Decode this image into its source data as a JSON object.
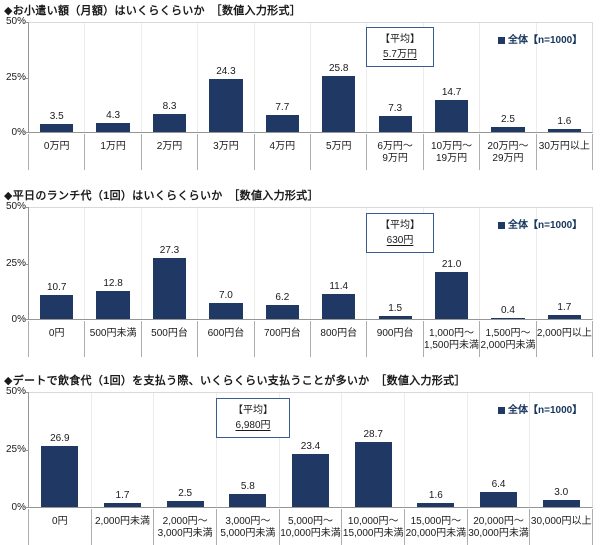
{
  "colors": {
    "bar": "#1f3864",
    "average_box_border": "#3a5a94",
    "legend_text": "#17365d",
    "axis": "#969696",
    "gridline": "#ececec"
  },
  "chart_data": [
    {
      "type": "bar",
      "title": "◆お小遣い額（月額）はいくらくらいか　［数値入力形式］",
      "categories": [
        "0万円",
        "1万円",
        "2万円",
        "3万円",
        "4万円",
        "5万円",
        "6万円～\n9万円",
        "10万円～\n19万円",
        "20万円～\n29万円",
        "30万円以上"
      ],
      "values": [
        3.5,
        4.3,
        8.3,
        24.3,
        7.7,
        25.8,
        7.3,
        14.7,
        2.5,
        1.6
      ],
      "ylim": [
        0,
        50
      ],
      "yticks": [
        "50%",
        "25%",
        "0%"
      ],
      "grid": "vertical-only",
      "bar_color": "#1f3864",
      "legend": "全体【n=1000】",
      "legend_position": "top-right",
      "average_label": "【平均】",
      "average_value": "5.7万円"
    },
    {
      "type": "bar",
      "title": "◆平日のランチ代（1回）はいくらくらいか　［数値入力形式］",
      "categories": [
        "0円",
        "500円未満",
        "500円台",
        "600円台",
        "700円台",
        "800円台",
        "900円台",
        "1,000円～\n1,500円未満",
        "1,500円～\n2,000円未満",
        "2,000円以上"
      ],
      "values": [
        10.7,
        12.8,
        27.3,
        7.0,
        6.2,
        11.4,
        1.5,
        21.0,
        0.4,
        1.7
      ],
      "ylim": [
        0,
        50
      ],
      "yticks": [
        "50%",
        "25%",
        "0%"
      ],
      "grid": "vertical-only",
      "bar_color": "#1f3864",
      "legend": "全体【n=1000】",
      "legend_position": "top-right",
      "average_label": "【平均】",
      "average_value": "630円"
    },
    {
      "type": "bar",
      "title": "◆デートで飲食代（1回）を支払う際、いくらくらい支払うことが多いか　［数値入力形式］",
      "categories": [
        "0円",
        "2,000円未満",
        "2,000円～\n3,000円未満",
        "3,000円～\n5,000円未満",
        "5,000円～\n10,000円未満",
        "10,000円～\n15,000円未満",
        "15,000円～\n20,000円未満",
        "20,000円～\n30,000円未満",
        "30,000円以上"
      ],
      "values": [
        26.9,
        1.7,
        2.5,
        5.8,
        23.4,
        28.7,
        1.6,
        6.4,
        3.0
      ],
      "ylim": [
        0,
        50
      ],
      "yticks": [
        "50%",
        "25%",
        "0%"
      ],
      "grid": "vertical-only",
      "bar_color": "#1f3864",
      "legend": "全体【n=1000】",
      "legend_position": "top-right",
      "average_label": "【平均】",
      "average_value": "6,980円"
    }
  ]
}
